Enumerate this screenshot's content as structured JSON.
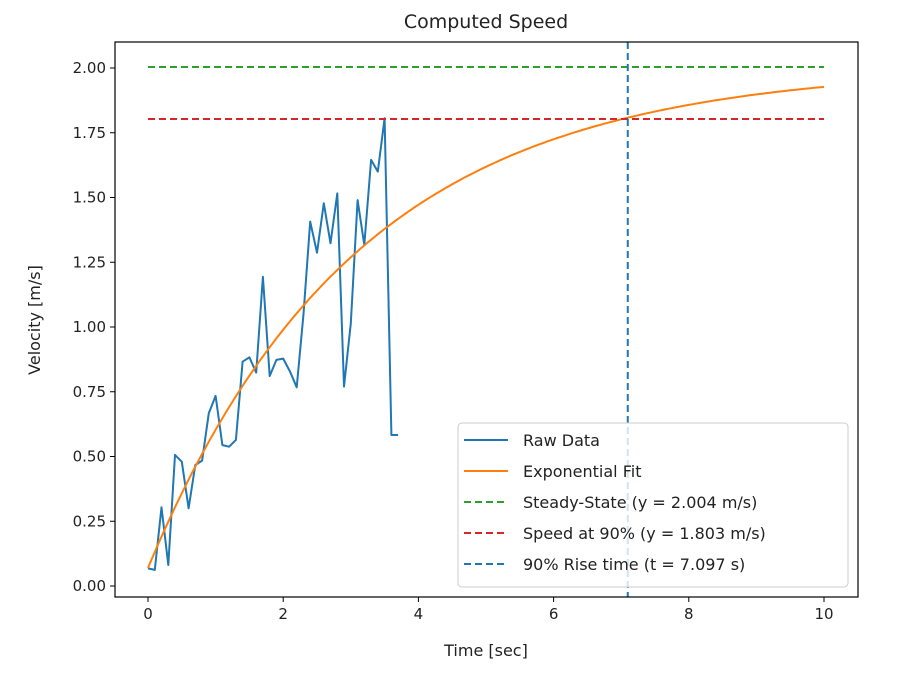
{
  "chart_data": {
    "type": "line",
    "title": "Computed Speed",
    "xlabel": "Time [sec]",
    "ylabel": "Velocity [m/s]",
    "xlim": [
      -0.5,
      10.5
    ],
    "ylim": [
      -0.05,
      2.1
    ],
    "xticks": [
      0,
      2,
      4,
      6,
      8,
      10
    ],
    "xtick_labels": [
      "0",
      "2",
      "4",
      "6",
      "8",
      "10"
    ],
    "yticks": [
      0,
      0.25,
      0.5,
      0.75,
      1.0,
      1.25,
      1.5,
      1.75,
      2.0
    ],
    "ytick_labels": [
      "0.00",
      "0.25",
      "0.50",
      "0.75",
      "1.00",
      "1.25",
      "1.50",
      "1.75",
      "2.00"
    ],
    "grid": false,
    "legend_position": "bottom-right",
    "series": [
      {
        "name": "Raw Data",
        "color": "#1f77b4",
        "style": "solid",
        "x_start": 0,
        "x_step": 0.1,
        "values": [
          0.068,
          0.062,
          0.304,
          0.081,
          0.506,
          0.48,
          0.3,
          0.467,
          0.484,
          0.667,
          0.734,
          0.544,
          0.538,
          0.564,
          0.866,
          0.883,
          0.824,
          1.194,
          0.811,
          0.873,
          0.878,
          0.828,
          0.767,
          1.05,
          1.407,
          1.287,
          1.478,
          1.323,
          1.516,
          0.77,
          1.014,
          1.49,
          1.317,
          1.645,
          1.6,
          1.806,
          0.583,
          0.583
        ]
      },
      {
        "name": "Exponential Fit",
        "color": "#ff7f0e",
        "style": "solid",
        "model": "y = a - b*exp(-t/tau)",
        "a": 2.004,
        "b": 1.934,
        "tau": 3.1,
        "x_range": [
          0,
          10
        ]
      },
      {
        "name": "Steady-State (y = 2.004 m/s)",
        "color": "#2ca02c",
        "style": "dashed",
        "type": "hline",
        "y": 2.004,
        "x_range": [
          0,
          10
        ]
      },
      {
        "name": "Speed at 90% (y = 1.803 m/s)",
        "color": "#d62728",
        "style": "dashed",
        "type": "hline",
        "y": 1.803,
        "x_range": [
          0,
          10
        ]
      },
      {
        "name": "90% Rise time (t = 7.097 s)",
        "color": "#1f77b4",
        "style": "dashed",
        "type": "vline",
        "x": 7.097
      }
    ]
  }
}
